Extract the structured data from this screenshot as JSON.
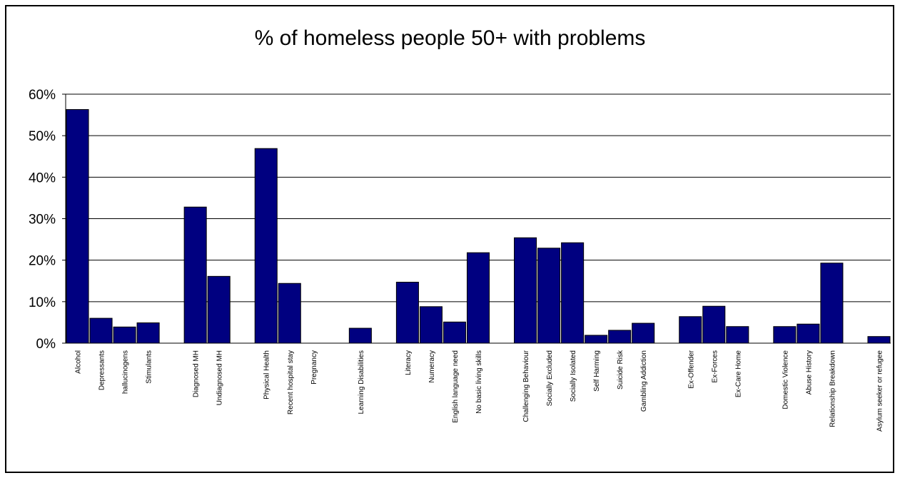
{
  "chart_data": {
    "type": "bar",
    "title": "% of homeless people 50+ with problems",
    "xlabel": "",
    "ylabel": "",
    "ylim": [
      0,
      60
    ],
    "yticks": [
      "0%",
      "10%",
      "20%",
      "30%",
      "40%",
      "50%",
      "60%"
    ],
    "grid": true,
    "legend": "none",
    "bar_color": "#000080",
    "categories": [
      "Alcohol",
      "Depressants",
      "hallucinogens",
      "Stimulants",
      "",
      "Diagnosed MH",
      "Undiagnosed MH",
      "",
      "Physical Health",
      "Recent hospital stay",
      "Pregnancy",
      "",
      "Learning Disabilities",
      "",
      "Literacy",
      "Numeracy",
      "English language need",
      "No basic living skills",
      "",
      "Challenging Behaviour",
      "Socially Excluded",
      "Socially Isolated",
      "Self Harming",
      "Suicide Risk",
      "Gambling Addiction",
      "",
      "Ex-Offender",
      "Ex-Forces",
      "Ex-Care Home",
      "",
      "Domestic Violence",
      "Abuse History",
      "Relationship Breakdown",
      "",
      "Asylum seeker or refugee"
    ],
    "values": [
      56.3,
      6,
      3.9,
      4.9,
      null,
      32.8,
      16.1,
      null,
      46.9,
      14.4,
      0,
      null,
      3.6,
      null,
      14.7,
      8.8,
      5.1,
      21.8,
      null,
      25.4,
      22.9,
      24.2,
      1.9,
      3.1,
      4.8,
      null,
      6.4,
      8.9,
      4,
      null,
      4,
      4.6,
      19.3,
      null,
      1.6
    ]
  }
}
